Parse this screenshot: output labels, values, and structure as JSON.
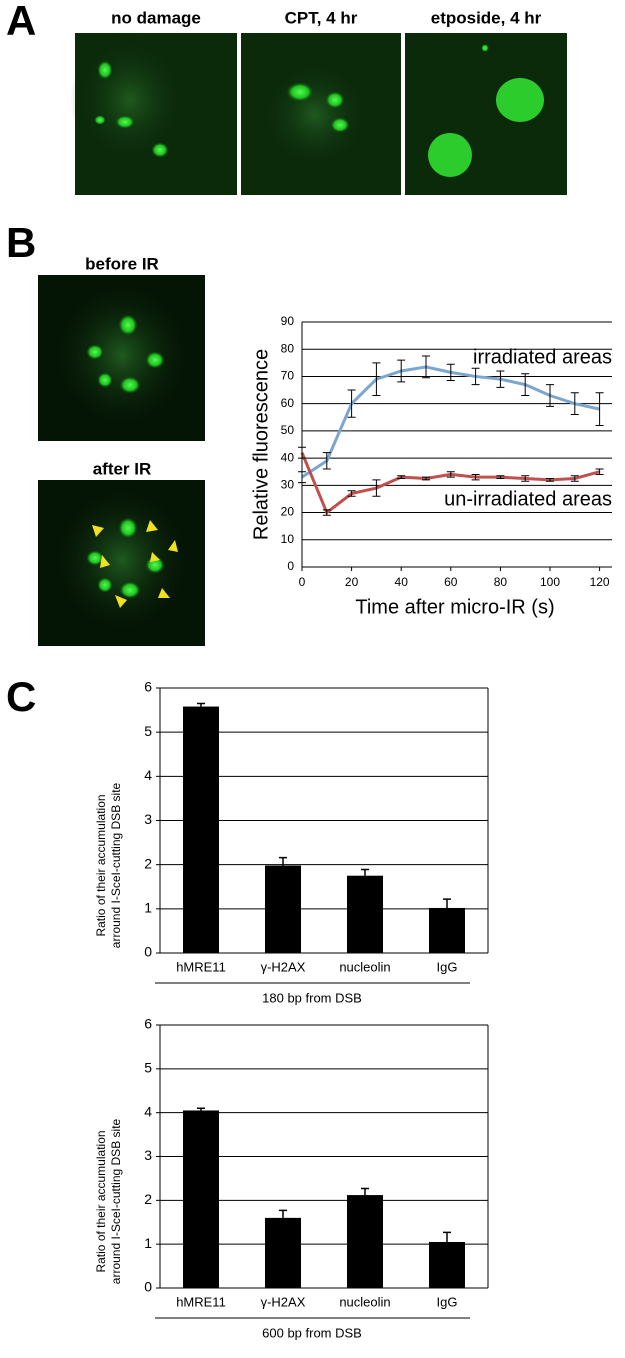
{
  "panel_labels": [
    "A",
    "B",
    "C"
  ],
  "images": [
    {
      "title": "no damage"
    },
    {
      "title": "CPT, 4 hr"
    },
    {
      "title": "etposide, 4 hr"
    },
    {
      "title": "before IR"
    },
    {
      "title": "after IR"
    }
  ],
  "chart_data": [
    {
      "type": "line",
      "x_label": "Time after micro-IR (s)",
      "y_label": "Relative fluorescence",
      "x": [
        0,
        10,
        20,
        30,
        40,
        50,
        60,
        70,
        80,
        90,
        100,
        110,
        120
      ],
      "series": [
        {
          "color": "#7aa6d0",
          "values": [
            33,
            39,
            60,
            69,
            72,
            73.5,
            71.5,
            70,
            69,
            67,
            63,
            60,
            58
          ],
          "errors": [
            2,
            3,
            5,
            6,
            4,
            4,
            3,
            3,
            3,
            4,
            4,
            4,
            6
          ]
        },
        {
          "color": "#c0504d",
          "values": [
            42,
            20,
            27,
            29,
            33,
            32.5,
            34,
            33,
            33,
            32.5,
            32,
            32.5,
            35
          ],
          "errors": [
            2,
            1,
            1,
            3,
            0.5,
            0.5,
            1,
            1,
            0.5,
            1,
            0.5,
            1,
            1
          ]
        }
      ],
      "annotations": [
        "irradiated areas",
        "un-irradiated areas"
      ],
      "xlim": [
        0,
        125
      ],
      "xticks": [
        0,
        20,
        40,
        60,
        80,
        100,
        120
      ],
      "ylim": [
        0,
        90
      ],
      "yticks": [
        0,
        10,
        20,
        30,
        40,
        50,
        60,
        70,
        80,
        90
      ],
      "grid": true
    },
    {
      "type": "bar",
      "y_label": [
        "Ratio of their accumulation",
        "arround I-SceI-cutting DSB site"
      ],
      "x_label": "180 bp from DSB",
      "categories": [
        "hMRE11",
        "γ-H2AX",
        "nucleolin",
        "IgG"
      ],
      "values": [
        5.58,
        1.98,
        1.75,
        1.02
      ],
      "errors": [
        0.07,
        0.18,
        0.14,
        0.2
      ],
      "color": "#000000",
      "ylim": [
        0,
        6
      ],
      "yticks": [
        0,
        1,
        2,
        3,
        4,
        5,
        6
      ],
      "grid": true
    },
    {
      "type": "bar",
      "y_label": [
        "Ratio of their accumulation",
        "arround I-SceI-cutting DSB site"
      ],
      "x_label": "600 bp from DSB",
      "categories": [
        "hMRE11",
        "γ-H2AX",
        "nucleolin",
        "IgG"
      ],
      "values": [
        4.05,
        1.6,
        2.12,
        1.05
      ],
      "errors": [
        0.05,
        0.17,
        0.15,
        0.22
      ],
      "color": "#000000",
      "ylim": [
        0,
        6
      ],
      "yticks": [
        0,
        1,
        2,
        3,
        4,
        5,
        6
      ],
      "grid": true
    }
  ]
}
